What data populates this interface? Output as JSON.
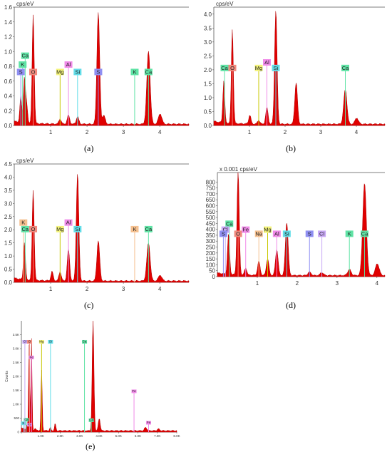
{
  "panels": [
    {
      "id": "a",
      "caption": "(a)",
      "unit_label": "cps/eV",
      "chart_data": {
        "type": "area",
        "xlim": [
          0,
          4.8
        ],
        "ylim": [
          0,
          1.6
        ],
        "xticks": [
          1,
          2,
          3,
          4
        ],
        "yticks": [
          0.0,
          0.2,
          0.4,
          0.6,
          0.8,
          1.0,
          1.2,
          1.4,
          1.6
        ],
        "ytick_decimals": 1,
        "series": [
          {
            "peaks": [
              [
                0.18,
                0.35
              ],
              [
                0.28,
                0.6
              ],
              [
                0.34,
                0.25
              ],
              [
                0.52,
                1.48
              ],
              [
                1.26,
                0.07
              ],
              [
                1.49,
                0.12
              ],
              [
                1.74,
                0.1
              ],
              [
                2.31,
                1.52
              ],
              [
                2.46,
                0.12
              ],
              [
                3.69,
                0.99
              ],
              [
                4.01,
                0.14
              ]
            ]
          }
        ],
        "element_lines": [
          {
            "el": "Ca",
            "x": 0.3,
            "h": 0.9,
            "box": "#5fe3a5"
          },
          {
            "el": "K",
            "x": 0.23,
            "h": 0.78,
            "box": "#5fe3a5"
          },
          {
            "el": "S",
            "x": 0.18,
            "h": 0.68,
            "box": "#8f8ff2"
          },
          {
            "el": "O",
            "x": 0.52,
            "h": 0.68,
            "box": "#f08a7e"
          },
          {
            "el": "Mg",
            "x": 1.26,
            "h": 0.68,
            "box": "#f3f37a"
          },
          {
            "el": "Al",
            "x": 1.49,
            "h": 0.78,
            "box": "#f08ae8"
          },
          {
            "el": "Si",
            "x": 1.74,
            "h": 0.68,
            "box": "#63dde8"
          },
          {
            "el": "S",
            "x": 2.31,
            "h": 0.68,
            "box": "#8f8ff2"
          },
          {
            "el": "K",
            "x": 3.31,
            "h": 0.68,
            "box": "#5fe3a5"
          },
          {
            "el": "Ca",
            "x": 3.69,
            "h": 0.68,
            "box": "#5fe3a5"
          }
        ]
      }
    },
    {
      "id": "b",
      "caption": "(b)",
      "unit_label": "cps/eV",
      "chart_data": {
        "type": "area",
        "xlim": [
          0,
          4.8
        ],
        "ylim": [
          0,
          4.25
        ],
        "xticks": [
          1,
          2,
          3,
          4
        ],
        "yticks": [
          0.0,
          0.5,
          1.0,
          1.5,
          2.0,
          2.5,
          3.0,
          3.5,
          4.0
        ],
        "ytick_decimals": 1,
        "series": [
          {
            "peaks": [
              [
                0.28,
                1.5
              ],
              [
                0.52,
                3.4
              ],
              [
                1.01,
                0.32
              ],
              [
                1.26,
                0.14
              ],
              [
                1.49,
                0.6
              ],
              [
                1.74,
                4.1
              ],
              [
                2.31,
                1.5
              ],
              [
                3.69,
                1.25
              ],
              [
                4.01,
                0.22
              ]
            ]
          }
        ],
        "element_lines": [
          {
            "el": "Ca",
            "x": 0.3,
            "h": 1.95,
            "box": "#5fe3a5"
          },
          {
            "el": "O",
            "x": 0.52,
            "h": 1.95,
            "box": "#f08a7e"
          },
          {
            "el": "Mg",
            "x": 1.26,
            "h": 1.95,
            "box": "#f3f37a"
          },
          {
            "el": "Al",
            "x": 1.49,
            "h": 2.15,
            "box": "#f08ae8"
          },
          {
            "el": "Si",
            "x": 1.74,
            "h": 1.95,
            "box": "#63dde8"
          },
          {
            "el": "Ca",
            "x": 3.69,
            "h": 1.95,
            "box": "#5fe3a5"
          }
        ]
      }
    },
    {
      "id": "c",
      "caption": "(c)",
      "unit_label": "cps/eV",
      "chart_data": {
        "type": "area",
        "xlim": [
          0,
          4.8
        ],
        "ylim": [
          0,
          4.5
        ],
        "xticks": [
          1,
          2,
          3,
          4
        ],
        "yticks": [
          0.0,
          0.5,
          1.0,
          1.5,
          2.0,
          2.5,
          3.0,
          3.5,
          4.0,
          4.5
        ],
        "ytick_decimals": 1,
        "series": [
          {
            "peaks": [
              [
                0.28,
                1.4
              ],
              [
                0.52,
                3.45
              ],
              [
                1.04,
                0.35
              ],
              [
                1.26,
                0.35
              ],
              [
                1.49,
                1.2
              ],
              [
                1.74,
                4.1
              ],
              [
                2.31,
                1.55
              ],
              [
                3.69,
                1.45
              ],
              [
                4.01,
                0.22
              ]
            ]
          }
        ],
        "element_lines": [
          {
            "el": "K",
            "x": 0.25,
            "h": 2.15,
            "box": "#f5c08f"
          },
          {
            "el": "Ca",
            "x": 0.3,
            "h": 1.9,
            "box": "#5fe3a5"
          },
          {
            "el": "O",
            "x": 0.52,
            "h": 1.9,
            "box": "#f08a7e"
          },
          {
            "el": "Mg",
            "x": 1.26,
            "h": 1.9,
            "box": "#f3f37a"
          },
          {
            "el": "Al",
            "x": 1.49,
            "h": 2.15,
            "box": "#f08ae8"
          },
          {
            "el": "Si",
            "x": 1.74,
            "h": 1.9,
            "box": "#63dde8"
          },
          {
            "el": "K",
            "x": 3.31,
            "h": 1.9,
            "box": "#f5c08f"
          },
          {
            "el": "Ca",
            "x": 3.69,
            "h": 1.9,
            "box": "#5fe3a5"
          }
        ]
      }
    },
    {
      "id": "d",
      "caption": "(d)",
      "unit_label": "x 0.001 cps/eV",
      "chart_data": {
        "type": "area",
        "xlim": [
          0,
          4.2
        ],
        "ylim": [
          0,
          880
        ],
        "xticks": [
          1,
          2,
          3,
          4
        ],
        "yticks": [
          0,
          50,
          100,
          150,
          200,
          250,
          300,
          350,
          400,
          450,
          500,
          550,
          600,
          650,
          700,
          750,
          800
        ],
        "ytick_decimals": 0,
        "series": [
          {
            "peaks": [
              [
                0.28,
                340
              ],
              [
                0.52,
                880
              ],
              [
                0.71,
                60
              ],
              [
                1.04,
                120
              ],
              [
                1.26,
                140
              ],
              [
                1.49,
                220
              ],
              [
                1.74,
                450
              ],
              [
                2.31,
                30
              ],
              [
                2.62,
                25
              ],
              [
                3.31,
                50
              ],
              [
                3.69,
                780
              ],
              [
                4.01,
                100
              ]
            ]
          }
        ],
        "element_lines": [
          {
            "el": "Ca",
            "x": 0.3,
            "h": 420,
            "box": "#5fe3a5"
          },
          {
            "el": "Cl",
            "x": 0.2,
            "h": 370,
            "box": "#c8a8f5"
          },
          {
            "el": "S",
            "x": 0.15,
            "h": 335,
            "box": "#8f8ff2"
          },
          {
            "el": "O",
            "x": 0.52,
            "h": 335,
            "box": "#f08a7e"
          },
          {
            "el": "Fe",
            "x": 0.71,
            "h": 370,
            "box": "#f08ae8"
          },
          {
            "el": "Na",
            "x": 1.04,
            "h": 335,
            "box": "#f5c08f"
          },
          {
            "el": "Mg",
            "x": 1.26,
            "h": 370,
            "box": "#f3f37a"
          },
          {
            "el": "Al",
            "x": 1.49,
            "h": 335,
            "box": "#f08ae8"
          },
          {
            "el": "Si",
            "x": 1.74,
            "h": 335,
            "box": "#63dde8"
          },
          {
            "el": "S",
            "x": 2.31,
            "h": 335,
            "box": "#8f8ff2"
          },
          {
            "el": "Cl",
            "x": 2.62,
            "h": 335,
            "box": "#c8a8f5"
          },
          {
            "el": "K",
            "x": 3.31,
            "h": 335,
            "box": "#5fe3a5"
          },
          {
            "el": "Ca",
            "x": 3.69,
            "h": 335,
            "box": "#5fe3a5"
          }
        ]
      }
    },
    {
      "id": "e",
      "caption": "(e)",
      "unit_label": "",
      "ylabel": "Counts",
      "chart_data": {
        "type": "area",
        "xlim": [
          0,
          8.0
        ],
        "ylim": [
          0,
          4000
        ],
        "xticks": [
          0.0,
          1.0,
          2.0,
          3.0,
          4.0,
          5.0,
          6.0,
          7.0,
          8.0
        ],
        "xtick_labels": [
          "",
          "1.0K",
          "2.0K",
          "3.0K",
          "4.0K",
          "5.0K",
          "6.0K",
          "7.0K",
          "8.0K"
        ],
        "yticks": [
          0,
          500,
          1000,
          1500,
          2000,
          2500,
          3000,
          3500
        ],
        "ytick_labels": [
          "0",
          "500",
          "1.0K",
          "1.5K",
          "2.0K",
          "2.5K",
          "3.0K",
          "3.5K"
        ],
        "series": [
          {
            "peaks": [
              [
                0.28,
                150
              ],
              [
                0.34,
                120
              ],
              [
                0.4,
                3050
              ],
              [
                0.52,
                3300
              ],
              [
                0.71,
                80
              ],
              [
                1.04,
                2200
              ],
              [
                1.49,
                120
              ],
              [
                1.74,
                250
              ],
              [
                3.69,
                3950
              ],
              [
                4.01,
                450
              ],
              [
                6.4,
                120
              ],
              [
                7.06,
                60
              ]
            ]
          }
        ],
        "element_lines": [
          {
            "el": "Si",
            "x": 0.12,
            "h": 250,
            "box": "#63dde8"
          },
          {
            "el": "Ca",
            "x": 0.25,
            "h": 380,
            "box": "#5fe3a5"
          },
          {
            "el": "Fe",
            "x": 0.42,
            "h": 200,
            "box": "#f08ae8"
          },
          {
            "el": "Cl",
            "x": 0.18,
            "h": 3180,
            "box": "#c8a8f5"
          },
          {
            "el": "O",
            "x": 0.42,
            "h": 3180,
            "box": "#f08a7e"
          },
          {
            "el": "Fe",
            "x": 0.52,
            "h": 2620,
            "box": "#f08ae8"
          },
          {
            "el": "Mg",
            "x": 1.04,
            "h": 3180,
            "box": "#f3f37a"
          },
          {
            "el": "Si",
            "x": 1.5,
            "h": 3180,
            "box": "#63dde8"
          },
          {
            "el": "Ca",
            "x": 3.25,
            "h": 3180,
            "box": "#5fe3a5"
          },
          {
            "el": "Ca",
            "x": 3.6,
            "h": 360,
            "box": "#5fe3a5"
          },
          {
            "el": "Fe",
            "x": 5.8,
            "h": 1400,
            "box": "#f08ae8"
          },
          {
            "el": "Fe",
            "x": 6.55,
            "h": 270,
            "box": "#f08ae8"
          }
        ]
      }
    }
  ]
}
